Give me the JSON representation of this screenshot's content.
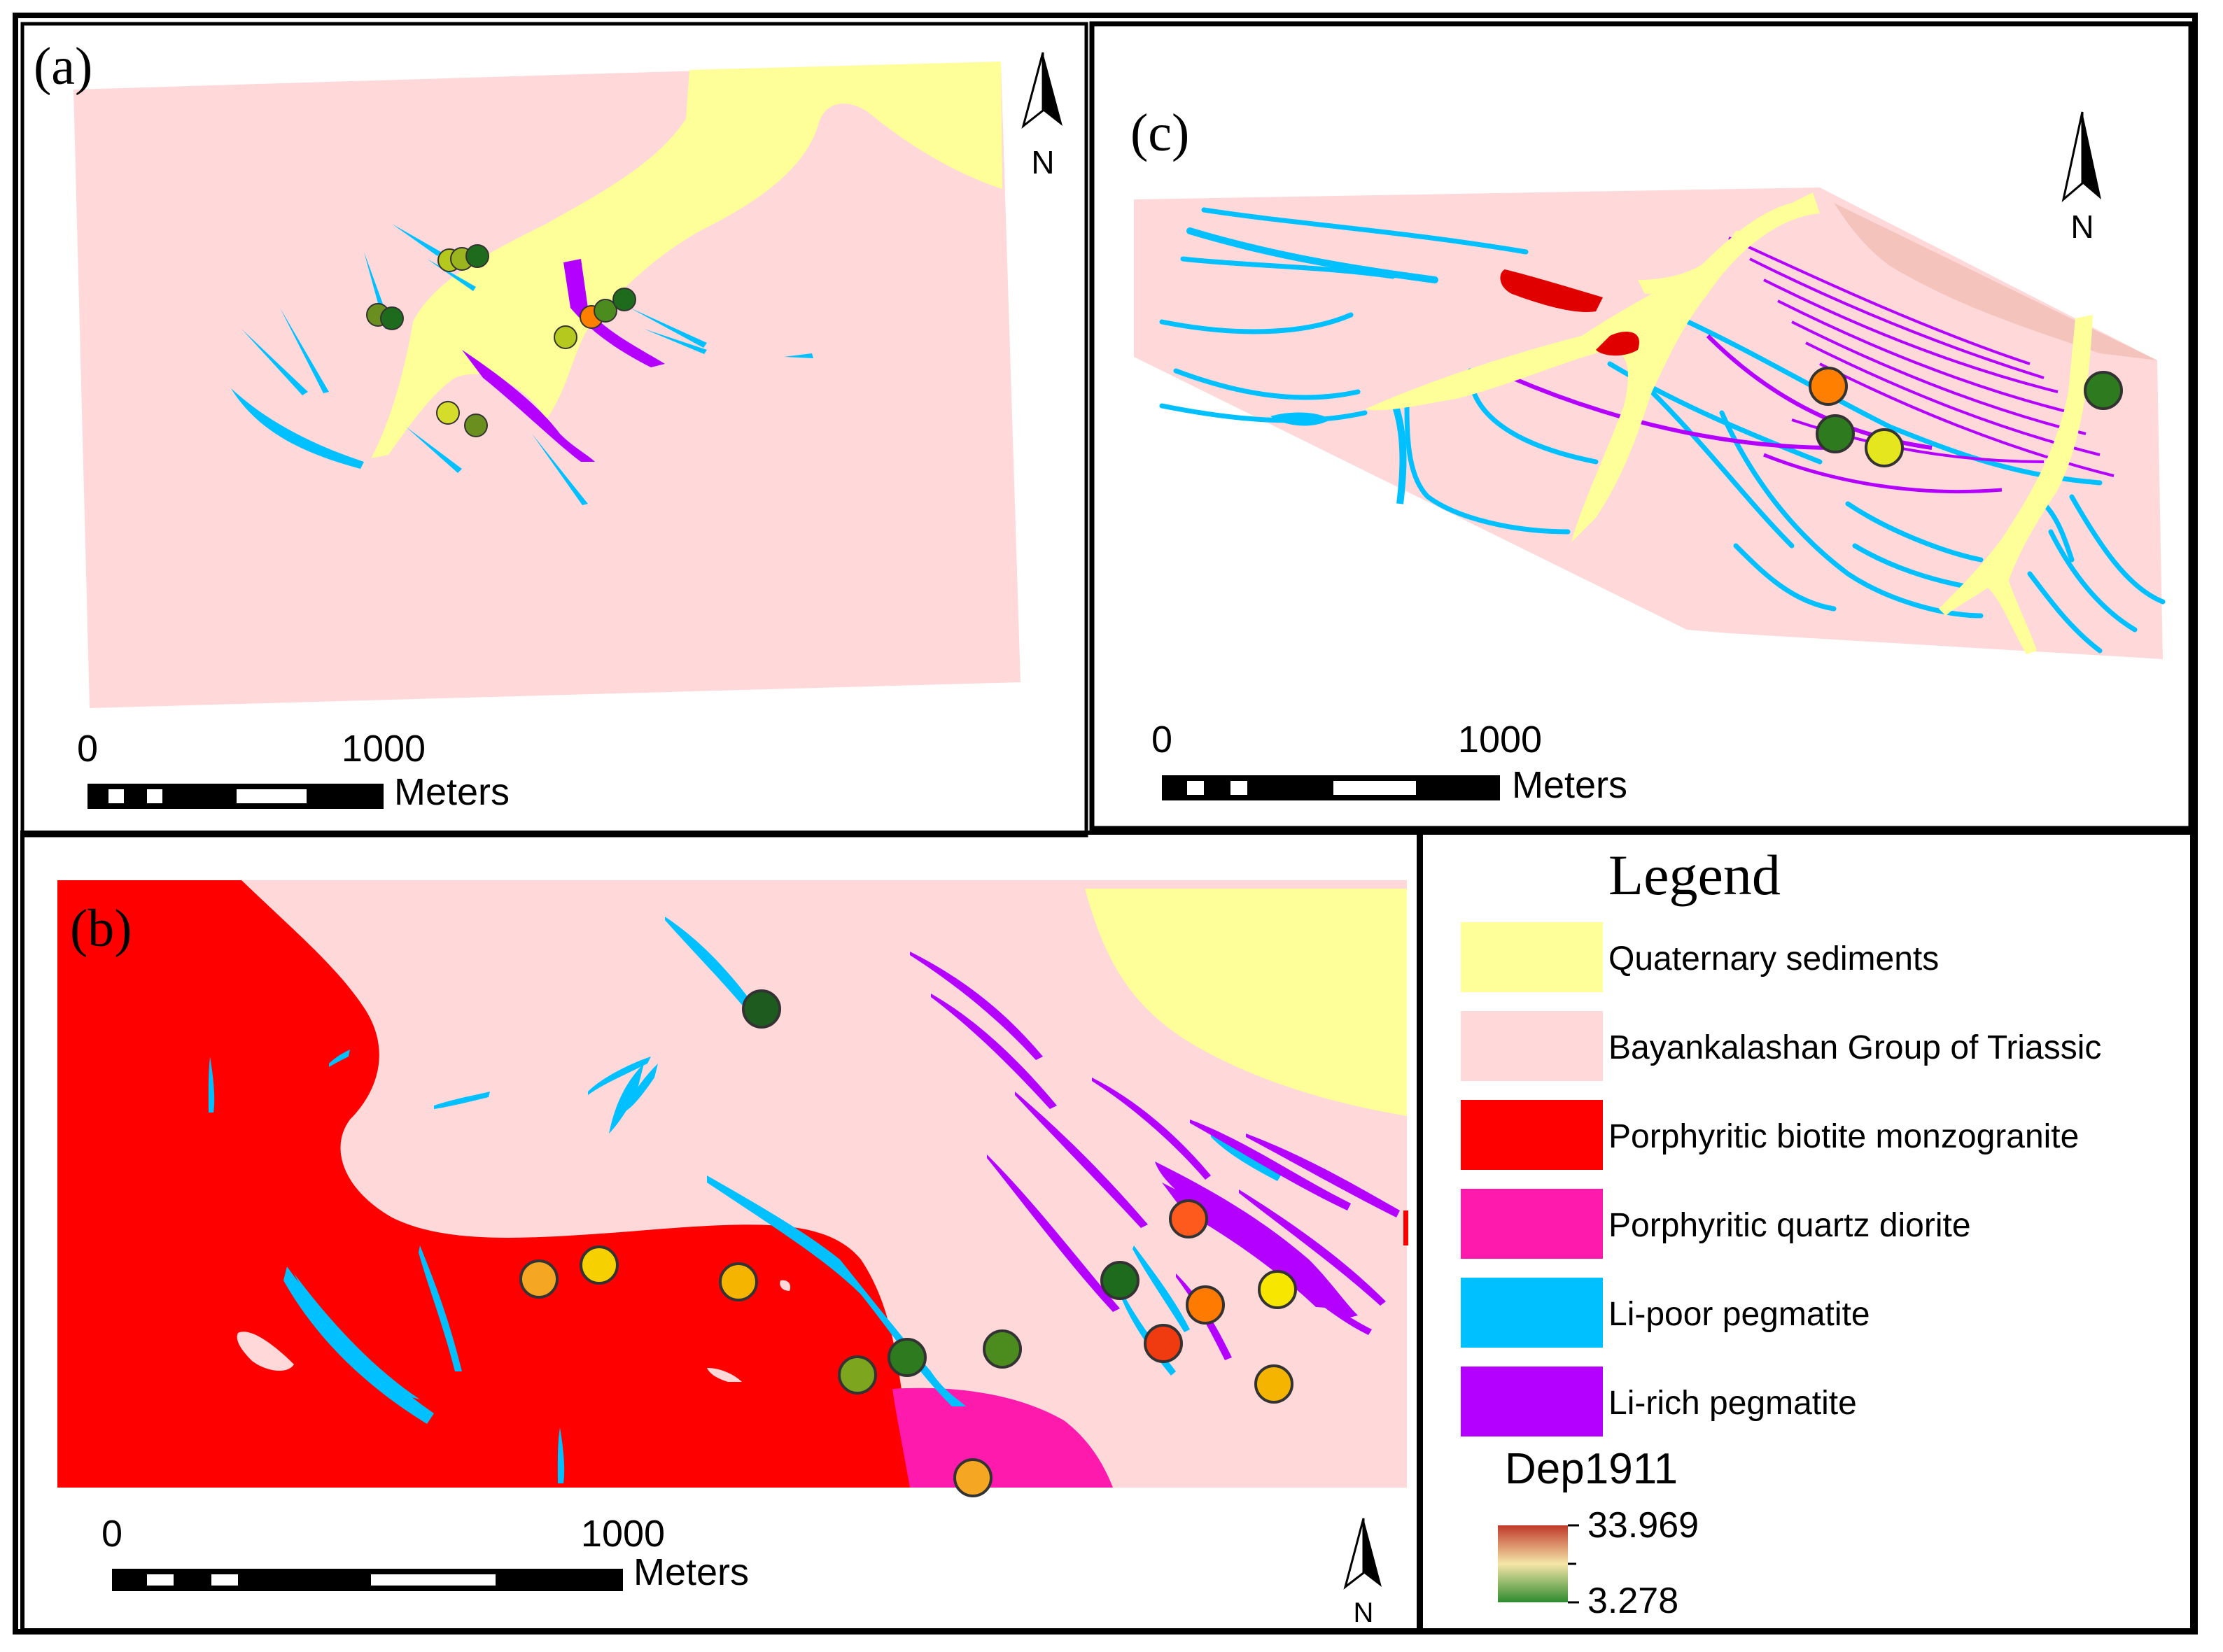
{
  "panels": {
    "a": {
      "label": "(a)",
      "scalebar": {
        "tick0": "0",
        "tick1": "1000",
        "unit": "Meters"
      },
      "north": "N"
    },
    "b": {
      "label": "(b)",
      "scalebar": {
        "tick0": "0",
        "tick1": "1000",
        "unit": "Meters"
      },
      "north": "N"
    },
    "c": {
      "label": "(c)",
      "scalebar": {
        "tick0": "0",
        "tick1": "1000",
        "unit": "Meters"
      },
      "north": "N"
    }
  },
  "legend": {
    "title": "Legend",
    "items": [
      {
        "label": "Quaternary sediments",
        "color": "#ffff99"
      },
      {
        "label": "Bayankalashan Group of Triassic",
        "color": "#ffd9d9"
      },
      {
        "label": "Porphyritic biotite monzogranite",
        "color": "#ff0000"
      },
      {
        "label": "Porphyritic quartz diorite",
        "color": "#ff1aae"
      },
      {
        "label": "Li-poor pegmatite",
        "color": "#00c0ff"
      },
      {
        "label": "Li-rich pegmatite",
        "color": "#b400ff"
      }
    ],
    "ramp": {
      "name": "Dep1911",
      "max": "33.969",
      "min": "3.278",
      "colors": [
        "#c0392b",
        "#f5e6a8",
        "#2e8b2e"
      ]
    }
  },
  "colors": {
    "quaternary": "#ffff99",
    "triassic": "#ffd9d9",
    "monzogranite": "#ff0000",
    "diorite": "#ff1aae",
    "li_poor": "#00c0ff",
    "li_rich": "#b400ff",
    "triassic_dark": "#f4c4bc"
  }
}
